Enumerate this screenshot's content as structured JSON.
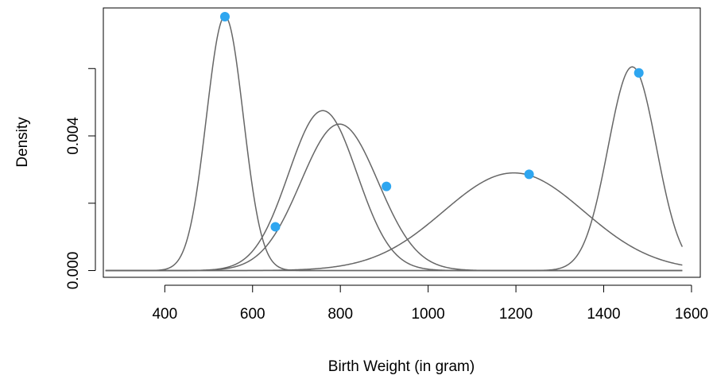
{
  "chart_data": {
    "type": "line",
    "title": "",
    "xlabel": "Birth Weight (in gram)",
    "ylabel": "Density",
    "xlim": [
      260,
      1620
    ],
    "ylim": [
      -0.0002,
      0.0078
    ],
    "x_ticks": [
      400,
      600,
      800,
      1000,
      1200,
      1400,
      1600
    ],
    "x_tick_labels": [
      "400",
      "600",
      "800",
      "1000",
      "1200",
      "1400",
      "1600"
    ],
    "y_ticks": [
      0.0,
      0.002,
      0.004,
      0.006
    ],
    "y_tick_labels": [
      "0.000",
      "",
      "0.004",
      ""
    ],
    "x_range": [
      265,
      1580
    ],
    "curve_color": "#666666",
    "point_color": "#2EA6F0",
    "legend": "none",
    "grid": false,
    "series": [
      {
        "mean": 537,
        "sd": 42,
        "peak": 0.00755
      },
      {
        "mean": 760,
        "sd": 78,
        "peak": 0.00475
      },
      {
        "mean": 798,
        "sd": 88,
        "peak": 0.00435
      },
      {
        "mean": 1195,
        "sd": 160,
        "peak": 0.0029
      },
      {
        "mean": 1465,
        "sd": 55,
        "peak": 0.00605
      }
    ],
    "points": [
      {
        "x": 537,
        "y": 0.00754
      },
      {
        "x": 652,
        "y": 0.0013
      },
      {
        "x": 905,
        "y": 0.0025
      },
      {
        "x": 1230,
        "y": 0.00286
      },
      {
        "x": 1480,
        "y": 0.00587
      }
    ]
  }
}
